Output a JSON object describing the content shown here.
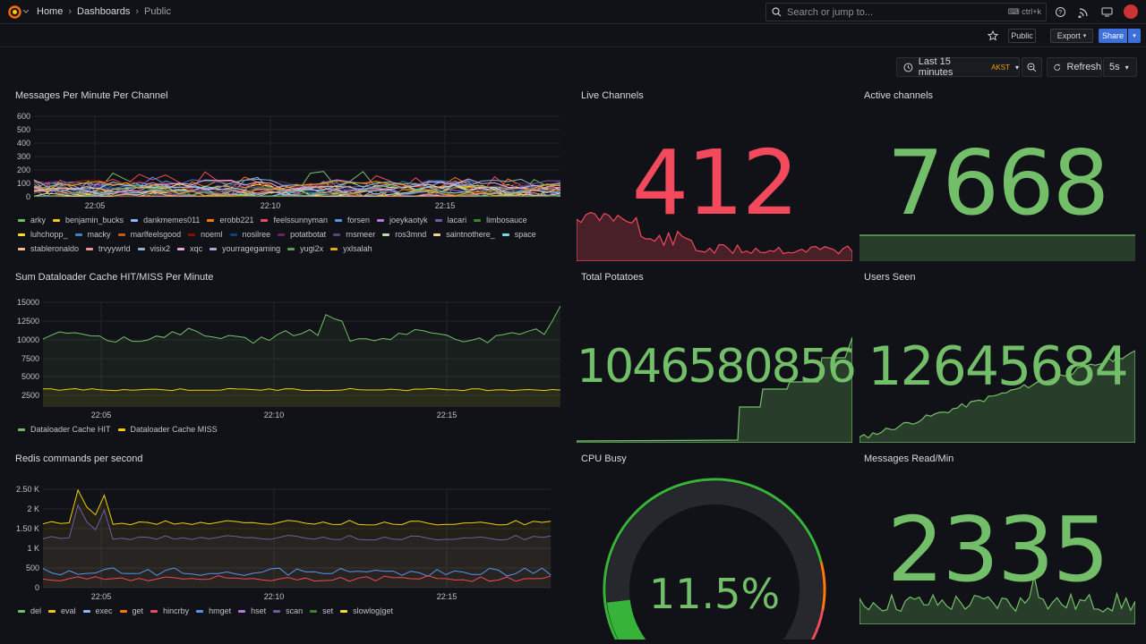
{
  "breadcrumb": {
    "home": "Home",
    "dashboards": "Dashboards",
    "current": "Public"
  },
  "search": {
    "placeholder": "Search or jump to...",
    "shortcut": "ctrl+k"
  },
  "toolbar": {
    "public_badge": "Public",
    "export_label": "Export",
    "share_label": "Share"
  },
  "timepicker": {
    "range": "Last 15 minutes",
    "timezone": "AKST",
    "refresh_label": "Refresh",
    "interval": "5s"
  },
  "panels": {
    "messages": {
      "title": "Messages Per Minute Per Channel",
      "yticks": [
        "600",
        "500",
        "400",
        "300",
        "200",
        "100",
        "0"
      ],
      "xticks": [
        "22:05",
        "22:10",
        "22:15"
      ],
      "legend": [
        {
          "name": "arky",
          "color": "#73bf69"
        },
        {
          "name": "benjamin_bucks",
          "color": "#f2cc0c"
        },
        {
          "name": "dankmemes011",
          "color": "#8ab8ff"
        },
        {
          "name": "erobb221",
          "color": "#ff780a"
        },
        {
          "name": "feelssunnyman",
          "color": "#f2495c"
        },
        {
          "name": "forsen",
          "color": "#5794f2"
        },
        {
          "name": "joeykaotyk",
          "color": "#b877d9"
        },
        {
          "name": "lacari",
          "color": "#705da0"
        },
        {
          "name": "limbosauce",
          "color": "#37872d"
        },
        {
          "name": "luhchopp_",
          "color": "#fade2a"
        },
        {
          "name": "macky",
          "color": "#447ebc"
        },
        {
          "name": "marlfeelsgood",
          "color": "#c15c17"
        },
        {
          "name": "noeml",
          "color": "#890f02"
        },
        {
          "name": "nosilree",
          "color": "#0a437c"
        },
        {
          "name": "potatbotat",
          "color": "#6d1f62"
        },
        {
          "name": "rnsmeer",
          "color": "#584477"
        },
        {
          "name": "ros3mnd",
          "color": "#b7dbab"
        },
        {
          "name": "saintnothere_",
          "color": "#f4d598"
        },
        {
          "name": "space",
          "color": "#70dbed"
        },
        {
          "name": "stableronaldo",
          "color": "#f9ba8f"
        },
        {
          "name": "trvyywrld",
          "color": "#f29191"
        },
        {
          "name": "visix2",
          "color": "#82b5d8"
        },
        {
          "name": "xqc",
          "color": "#e5a8e2"
        },
        {
          "name": "yourragegaming",
          "color": "#aea2e0"
        },
        {
          "name": "yugi2x",
          "color": "#629e51"
        },
        {
          "name": "yxlsalah",
          "color": "#e5ac0e"
        }
      ]
    },
    "live": {
      "title": "Live Channels",
      "value": "412",
      "color": "#f2495c"
    },
    "active": {
      "title": "Active channels",
      "value": "7668",
      "color": "#73bf69"
    },
    "dataloader": {
      "title": "Sum Dataloader Cache HIT/MISS Per Minute",
      "yticks": [
        "15000",
        "12500",
        "10000",
        "7500",
        "5000",
        "2500"
      ],
      "xticks": [
        "22:05",
        "22:10",
        "22:15"
      ],
      "legend": [
        {
          "name": "Dataloader Cache HIT",
          "color": "#73bf69"
        },
        {
          "name": "Dataloader Cache MISS",
          "color": "#f2cc0c"
        }
      ]
    },
    "potatoes": {
      "title": "Total Potatoes",
      "value": "1046580856",
      "color": "#73bf69"
    },
    "users": {
      "title": "Users Seen",
      "value": "12645684",
      "color": "#73bf69"
    },
    "redis": {
      "title": "Redis commands per second",
      "yticks": [
        "2.50 K",
        "2 K",
        "1.50 K",
        "1 K",
        "500",
        "0"
      ],
      "xticks": [
        "22:05",
        "22:10",
        "22:15"
      ],
      "legend": [
        {
          "name": "del",
          "color": "#73bf69"
        },
        {
          "name": "eval",
          "color": "#f2cc0c"
        },
        {
          "name": "exec",
          "color": "#8ab8ff"
        },
        {
          "name": "get",
          "color": "#ff780a"
        },
        {
          "name": "hincrby",
          "color": "#f2495c"
        },
        {
          "name": "hmget",
          "color": "#5794f2"
        },
        {
          "name": "hset",
          "color": "#b877d9"
        },
        {
          "name": "scan",
          "color": "#705da0"
        },
        {
          "name": "set",
          "color": "#37872d"
        },
        {
          "name": "slowlog|get",
          "color": "#fade2a"
        }
      ]
    },
    "cpu": {
      "title": "CPU Busy",
      "value": "11.5%",
      "percent": 11.5,
      "color": "#73bf69"
    },
    "msgread": {
      "title": "Messages Read/Min",
      "value": "2335",
      "color": "#73bf69"
    }
  }
}
